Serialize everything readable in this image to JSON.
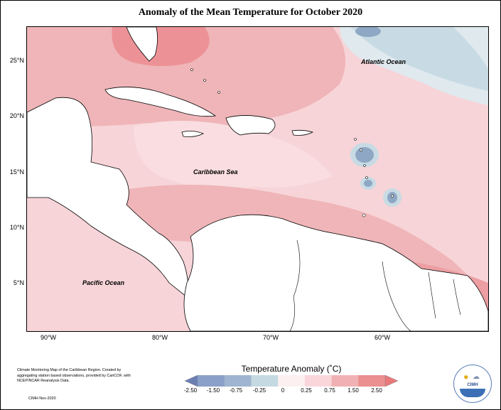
{
  "title": "Anomaly of the Mean Temperature for October 2020",
  "map": {
    "labels": {
      "atlantic": "Atlantic Ocean",
      "caribbean": "Caribbean Sea",
      "pacific": "Pacific Ocean"
    },
    "lat_ticks": [
      "25°N",
      "20°N",
      "15°N",
      "10°N",
      "5°N"
    ],
    "lon_ticks": [
      "90°W",
      "80°W",
      "70°W",
      "60°W"
    ],
    "extent": {
      "lon": [
        -92,
        -50
      ],
      "lat": [
        1,
        28
      ]
    }
  },
  "legend": {
    "title": "Temperature Anomaly (˚C)",
    "ticks": [
      "-2.50",
      "-1.50",
      "-0.75",
      "-0.25",
      "0",
      "0.25",
      "0.75",
      "1.50",
      "2.50"
    ],
    "colors": [
      "#6b7fb3",
      "#8aa0c8",
      "#9fb4cf",
      "#c5d9e2",
      "#fdf0f1",
      "#f9d6da",
      "#f0b1b4",
      "#eb8f90",
      "#e9787b"
    ]
  },
  "caption": "Climate Monitoring Map of the Caribbean Region. Created by aggregating station based observations, provided by CariCOF, with NCEP/NCAR Reanalysis Data.",
  "date": "CIMH Nov-2020",
  "logo": {
    "name": "CIMH"
  }
}
